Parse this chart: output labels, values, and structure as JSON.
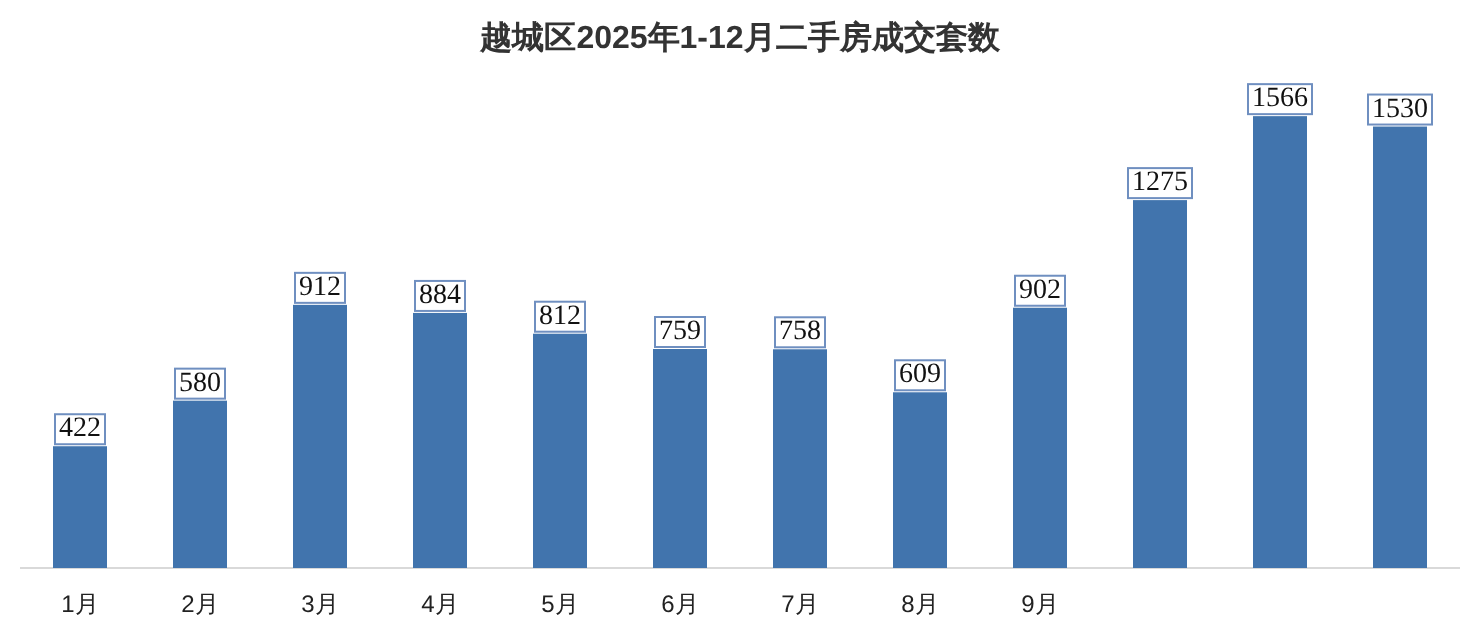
{
  "chart_data": {
    "type": "bar",
    "title": "越城区2025年1-12月二手房成交套数",
    "categories": [
      "1月",
      "2月",
      "3月",
      "4月",
      "5月",
      "6月",
      "7月",
      "8月",
      "9月",
      null,
      null,
      null
    ],
    "values": [
      422,
      580,
      912,
      884,
      812,
      759,
      758,
      609,
      902,
      1275,
      1566,
      1530
    ],
    "color": "#4174ad",
    "data_labels": true
  }
}
